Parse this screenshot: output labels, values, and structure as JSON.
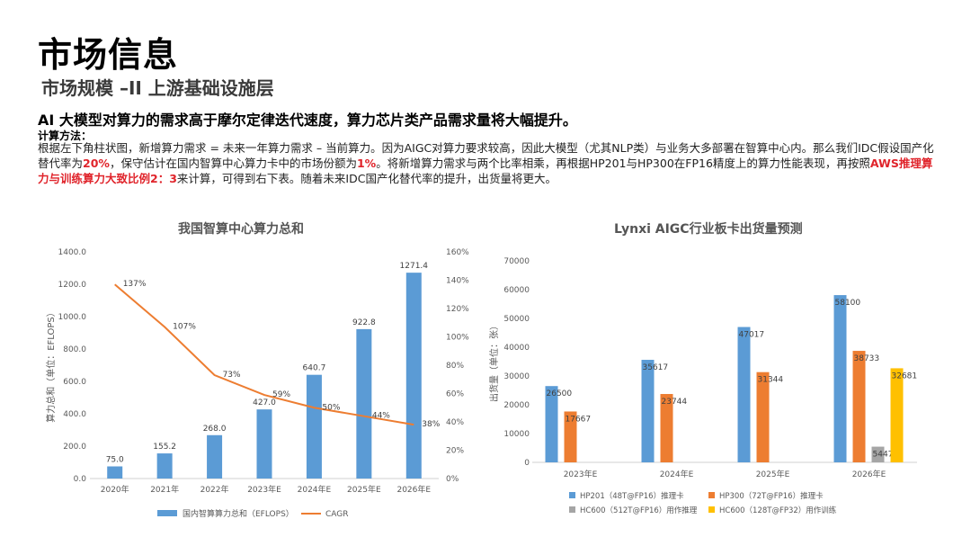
{
  "page": {
    "title": "市场信息",
    "subtitle": "市场规模 –II 上游基础设施层",
    "headline": "AI 大模型对算力的需求高于摩尔定律迭代速度，算力芯片类产品需求量将大幅提升。",
    "method_label": "计算方法：",
    "para": {
      "p1": "根据左下角柱状图，新增算力需求 = 未来一年算力需求 – 当前算力。因为AIGC对算力要求较高，因此大模型（尤其NLP类）与业务大多部署在智算中心内。那么我们IDC假设国产化替代率为",
      "r1": "20%",
      "p2": "，保守估计在国内智算中心算力卡中的市场份额为",
      "r2": "1%",
      "p3": "。将新增算力需求与两个比率相乘，再根据HP201与HP300在FP16精度上的算力性能表现，再按照",
      "r3": "AWS推理算力与训练算力大致比例2：3",
      "p4": "来计算，可得到右下表。随着未来IDC国产化替代率的提升，出货量将更大。"
    }
  },
  "colors": {
    "blue": "#5b9bd5",
    "orange": "#ed7d31",
    "gray": "#a5a5a5",
    "yellow": "#ffc000",
    "red": "#e0242b"
  },
  "chart_data": [
    {
      "type": "bar",
      "title": "我国智算中心算力总和",
      "categories": [
        "2020年",
        "2021年",
        "2022年",
        "2023年E",
        "2024年E",
        "2025年E",
        "2026年E"
      ],
      "series": [
        {
          "name": "国内智算算力总和（EFLOPS）",
          "type": "bar",
          "axis": "left",
          "values": [
            75.0,
            155.2,
            268.0,
            427.0,
            640.7,
            922.8,
            1271.4
          ],
          "labels": [
            "75.0",
            "155.2",
            "268.0",
            "427.0",
            "640.7",
            "922.8",
            "1271.4"
          ]
        },
        {
          "name": "CAGR",
          "type": "line",
          "axis": "right",
          "values": [
            137,
            107,
            73,
            59,
            50,
            44,
            38
          ],
          "labels": [
            "137%",
            "107%",
            "73%",
            "59%",
            "50%",
            "44%",
            "38%"
          ]
        }
      ],
      "ylabel": "算力总和（单位：EFLOPS）",
      "ylim": [
        0,
        1400
      ],
      "yticks": [
        "0.0",
        "200.0",
        "400.0",
        "600.0",
        "800.0",
        "1000.0",
        "1200.0",
        "1400.0"
      ],
      "y2lim": [
        0,
        160
      ],
      "y2ticks": [
        "0%",
        "20%",
        "40%",
        "60%",
        "80%",
        "100%",
        "120%",
        "140%",
        "160%"
      ],
      "legend": [
        "国内智算算力总和（EFLOPS）",
        "CAGR"
      ],
      "legend_position": "bottom"
    },
    {
      "type": "bar",
      "title": "Lynxi AIGC行业板卡出货量预测",
      "categories": [
        "2023年E",
        "2024年E",
        "2025年E",
        "2026年E"
      ],
      "series": [
        {
          "name": "HP201（48T@FP16）推理卡",
          "values": [
            26500,
            35617,
            47017,
            58100
          ],
          "labels": [
            "26500",
            "35617",
            "47017",
            "58100"
          ]
        },
        {
          "name": "HP300（72T@FP16）推理卡",
          "values": [
            17667,
            23744,
            31344,
            38733
          ],
          "labels": [
            "17667",
            "23744",
            "31344",
            "38733"
          ]
        },
        {
          "name": "HC600（512T@FP16）用作推理",
          "values": [
            null,
            null,
            null,
            5447
          ],
          "labels": [
            "",
            "",
            "",
            "5447"
          ]
        },
        {
          "name": "HC600（128T@FP32）用作训练",
          "values": [
            null,
            null,
            null,
            32681
          ],
          "labels": [
            "",
            "",
            "",
            "32681"
          ]
        }
      ],
      "ylabel": "出货量（单位：张）",
      "ylim": [
        0,
        70000
      ],
      "yticks": [
        "0",
        "10000",
        "20000",
        "30000",
        "40000",
        "50000",
        "60000",
        "70000"
      ],
      "legend": [
        "HP201（48T@FP16）推理卡",
        "HP300（72T@FP16）推理卡",
        "HC600（512T@FP16）用作推理",
        "HC600（128T@FP32）用作训练"
      ],
      "legend_position": "bottom"
    }
  ]
}
